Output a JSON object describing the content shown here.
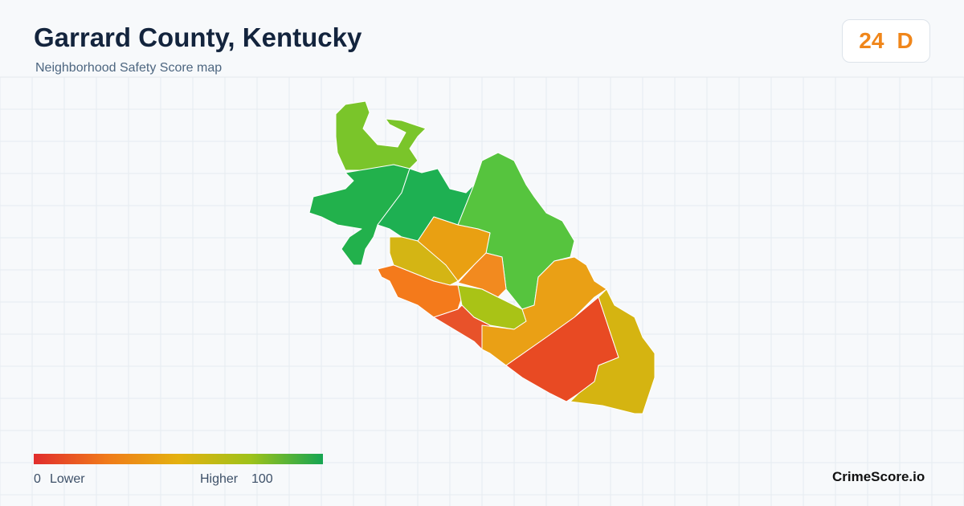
{
  "header": {
    "title": "Garrard County, Kentucky",
    "subtitle": "Neighborhood Safety Score map",
    "score": 24,
    "grade": "D"
  },
  "legend": {
    "min": 0,
    "low_label": "Lower",
    "high_label": "Higher",
    "max": 100
  },
  "footer": {
    "brand": "CrimeScore.io"
  }
}
